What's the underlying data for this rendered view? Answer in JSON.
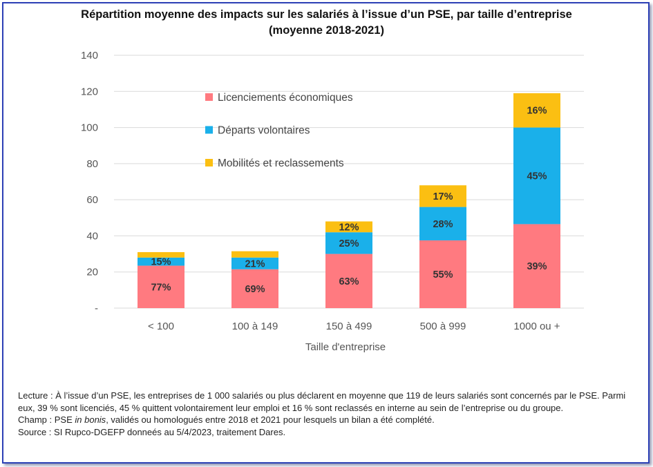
{
  "title_line1": "Répartition moyenne des impacts sur les salariés à l’issue d’un PSE, par taille d’entreprise",
  "title_line2": "(moyenne 2018-2021)",
  "chart_data": {
    "type": "bar",
    "stacked": true,
    "xlabel": "Taille d'entreprise",
    "ylabel": "",
    "ylim": [
      0,
      140
    ],
    "yticks": [
      0,
      20,
      40,
      60,
      80,
      100,
      120,
      140
    ],
    "ytick_labels": [
      "-",
      "20",
      "40",
      "60",
      "80",
      "100",
      "120",
      "140"
    ],
    "categories": [
      "< 100",
      "100 à 149",
      "150 à 499",
      "500 à 999",
      "1000 ou +"
    ],
    "series": [
      {
        "name": "Licenciements économiques",
        "color": "#ff7a80",
        "values": [
          23.5,
          21.5,
          30,
          37.5,
          46.5
        ],
        "labels": [
          "77%",
          "69%",
          "63%",
          "55%",
          "39%"
        ]
      },
      {
        "name": "Départs volontaires",
        "color": "#1ab0ea",
        "values": [
          4.5,
          6.5,
          12,
          18.5,
          53.5
        ],
        "labels": [
          "15%",
          "21%",
          "25%",
          "28%",
          "45%"
        ]
      },
      {
        "name": "Mobilités et reclassements",
        "color": "#fbbf12",
        "values": [
          3,
          3.5,
          6,
          12,
          19
        ],
        "labels": [
          "",
          "",
          "12%",
          "17%",
          "16%"
        ]
      }
    ],
    "grid": true,
    "legend_position": "top-left inside plot"
  },
  "notes": {
    "lecture": "Lecture : À l’issue d’un PSE, les entreprises de 1 000 salariés ou plus déclarent en moyenne que 119 de leurs salariés sont concernés par le PSE. Parmi eux, 39 % sont licenciés, 45 % quittent volontairement leur emploi et 16 % sont reclassés en interne au sein de l’entreprise ou du groupe.",
    "champ_prefix": "Champ : PSE ",
    "champ_italic": "in bonis",
    "champ_suffix": ", validés ou homologués entre 2018 et 2021 pour lesquels un bilan a été complété.",
    "source": "Source : SI Rupco-DGEFP donneés au 5/4/2023, traitement Dares."
  }
}
